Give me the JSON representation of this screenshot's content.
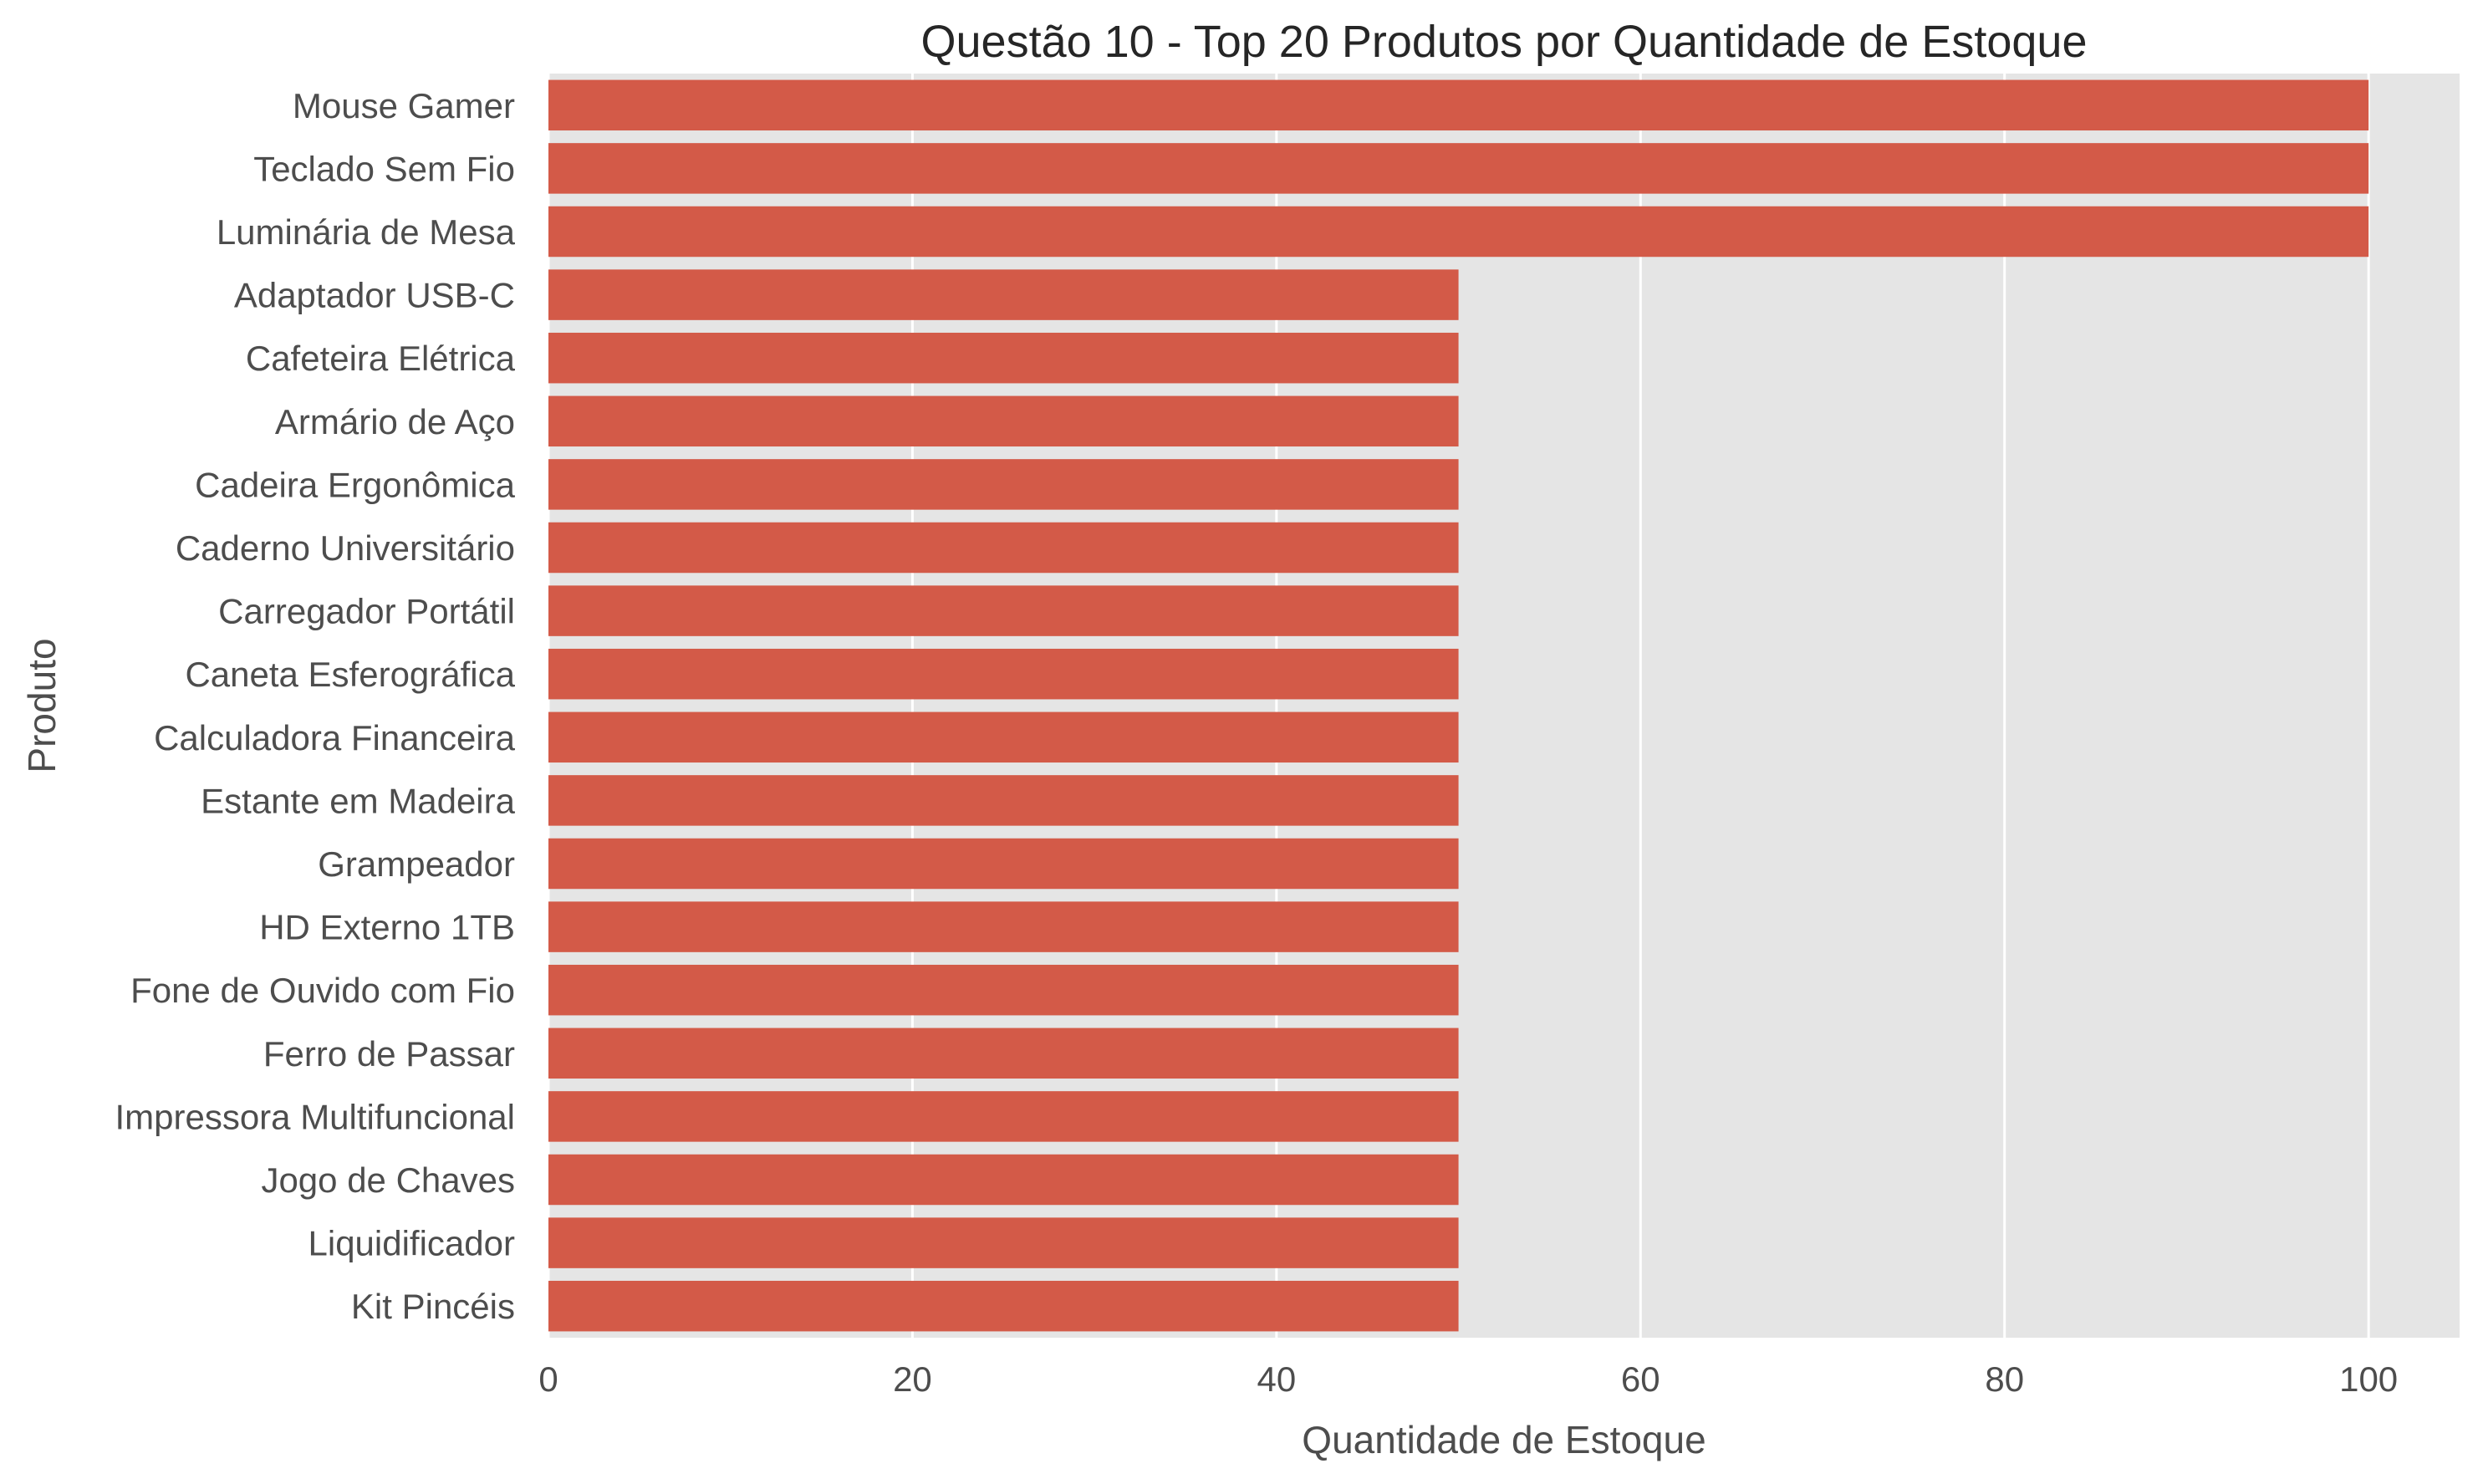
{
  "chart_data": {
    "type": "bar",
    "orientation": "horizontal",
    "title": "Questão 10 - Top 20 Produtos por Quantidade de Estoque",
    "xlabel": "Quantidade de Estoque",
    "ylabel": "Produto",
    "xlim": [
      0,
      105
    ],
    "xticks": [
      0,
      20,
      40,
      60,
      80,
      100
    ],
    "grid": true,
    "colors": {
      "bar": "#d35a48",
      "plot_bg": "#e5e5e5",
      "grid": "#ffffff"
    },
    "categories": [
      "Mouse Gamer",
      "Teclado Sem Fio",
      "Luminária de Mesa",
      "Adaptador USB-C",
      "Cafeteira Elétrica",
      "Armário de Aço",
      "Cadeira Ergonômica",
      "Caderno Universitário",
      "Carregador Portátil",
      "Caneta Esferográfica",
      "Calculadora Financeira",
      "Estante em Madeira",
      "Grampeador",
      "HD Externo 1TB",
      "Fone de Ouvido com Fio",
      "Ferro de Passar",
      "Impressora Multifuncional",
      "Jogo de Chaves",
      "Liquidificador",
      "Kit Pincéis"
    ],
    "values": [
      100,
      100,
      100,
      50,
      50,
      50,
      50,
      50,
      50,
      50,
      50,
      50,
      50,
      50,
      50,
      50,
      50,
      50,
      50,
      50
    ]
  }
}
